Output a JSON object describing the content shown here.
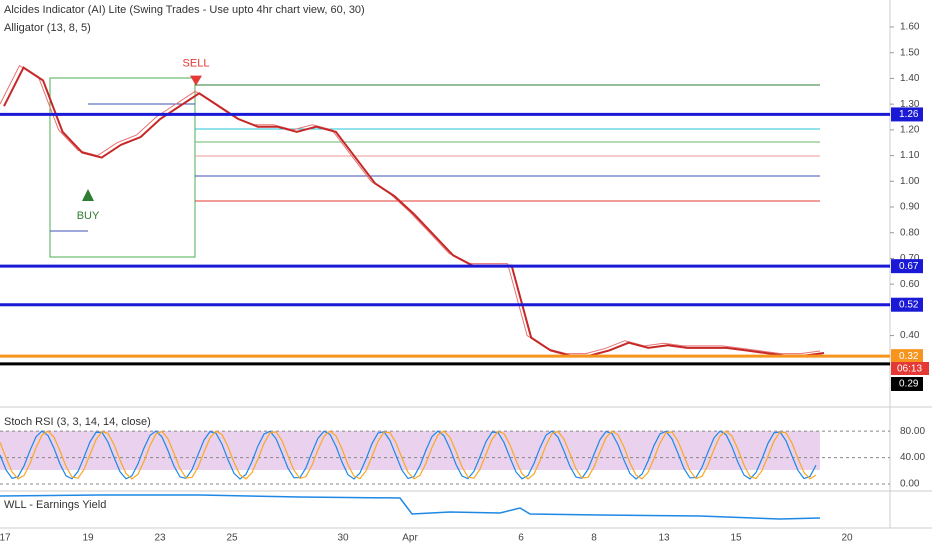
{
  "indicators": {
    "main": "Alcides Indicator (AI) Lite (Swing Trades - Use upto 4hr chart view, 60, 30)",
    "alligator": "Alligator (13, 8, 5)",
    "stoch": "Stoch RSI (3, 3, 14, 14, close)",
    "wll": "WLL - Earnings Yield"
  },
  "price_axis": {
    "range": [
      0.13,
      1.705
    ],
    "ticks": [
      {
        "value": 1.6,
        "label": "1.60"
      },
      {
        "value": 1.5,
        "label": "1.50"
      },
      {
        "value": 1.4,
        "label": "1.40"
      },
      {
        "value": 1.3,
        "label": "1.30"
      },
      {
        "value": 1.2,
        "label": "1.20"
      },
      {
        "value": 1.1,
        "label": "1.10"
      },
      {
        "value": 1.0,
        "label": "1.00"
      },
      {
        "value": 0.9,
        "label": "0.90"
      },
      {
        "value": 0.8,
        "label": "0.80"
      },
      {
        "value": 0.7,
        "label": "0.70"
      },
      {
        "value": 0.6,
        "label": "0.60"
      },
      {
        "value": 0.4,
        "label": "0.40"
      }
    ]
  },
  "levels": [
    {
      "value": 1.26,
      "label": "1.26",
      "color": "#1a1ad6"
    },
    {
      "value": 0.67,
      "label": "0.67",
      "color": "#1a1ad6"
    },
    {
      "value": 0.52,
      "label": "0.52",
      "color": "#1a1ad6"
    },
    {
      "value": 0.32,
      "label": "0.32",
      "color": "#f7941d"
    },
    {
      "value": 0.29,
      "label": "0.29",
      "color": "#000000"
    }
  ],
  "countdown": "06:13",
  "signals": [
    {
      "label": "SELL",
      "price": 1.38
    },
    {
      "label": "BUY",
      "price": 0.97
    }
  ],
  "price": [
    1.3,
    1.45,
    1.4,
    1.2,
    1.12,
    1.1,
    1.15,
    1.18,
    1.25,
    1.3,
    1.35,
    1.3,
    1.25,
    1.22,
    1.22,
    1.2,
    1.22,
    1.2,
    1.1,
    1.0,
    0.95,
    0.88,
    0.8,
    0.72,
    0.68,
    0.68,
    0.68,
    0.4,
    0.35,
    0.33,
    0.33,
    0.35,
    0.38,
    0.36,
    0.37,
    0.36,
    0.36,
    0.36,
    0.35,
    0.34,
    0.33,
    0.33,
    0.34
  ],
  "stoch_axis": {
    "range": [
      -9,
      112
    ],
    "ticks": [
      {
        "value": 80,
        "label": "80.00"
      },
      {
        "value": 40,
        "label": "40.00"
      },
      {
        "value": 0,
        "label": "0.00"
      }
    ]
  },
  "dates": [
    "17",
    "19",
    "23",
    "25",
    "30",
    "Apr",
    "6",
    "8",
    "13",
    "15",
    "20"
  ]
}
